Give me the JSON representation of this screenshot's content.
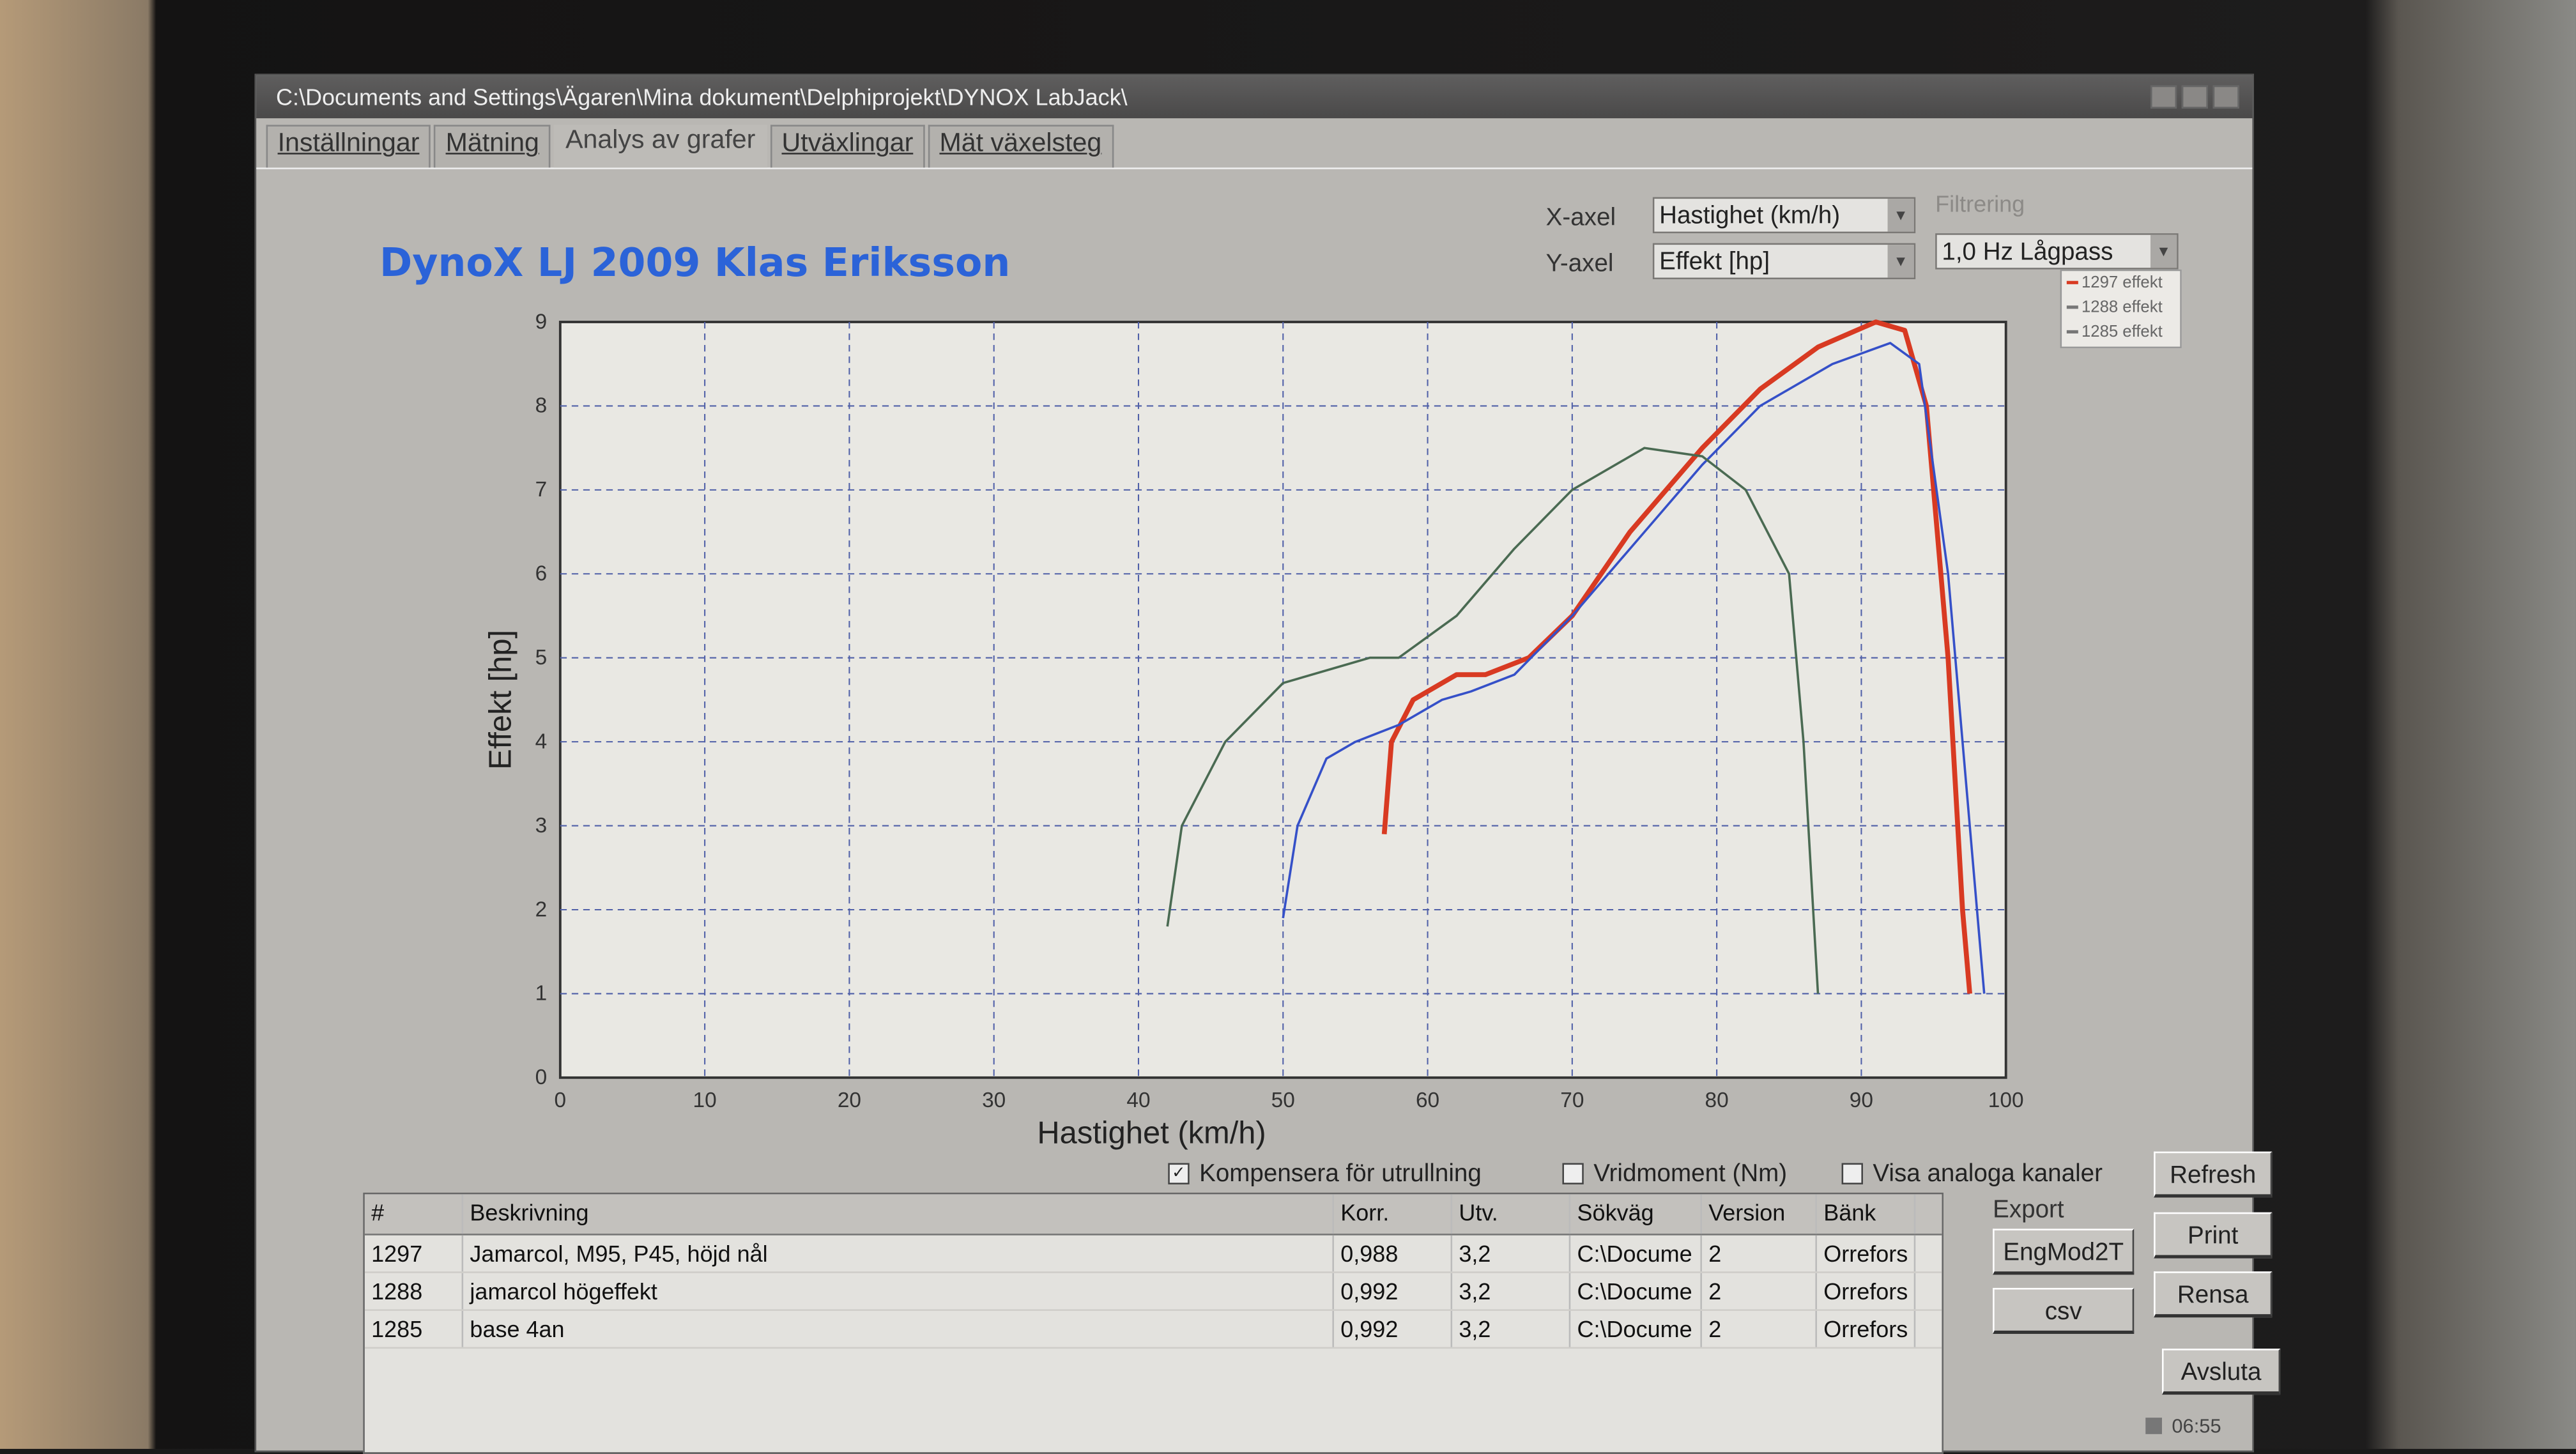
{
  "window": {
    "title": "C:\\Documents and Settings\\Ägaren\\Mina dokument\\Delphiprojekt\\DYNOX LabJack\\"
  },
  "tabs": [
    {
      "label": "Inställningar",
      "active": false
    },
    {
      "label": "Mätning",
      "active": false
    },
    {
      "label": "Analys av grafer",
      "active": true
    },
    {
      "label": "Utväxlingar",
      "active": false
    },
    {
      "label": "Mät växelsteg",
      "active": false
    }
  ],
  "app_title": "DynoX LJ 2009 Klas Eriksson",
  "controls": {
    "x_axis_label": "X-axel",
    "x_axis_value": "Hastighet (km/h)",
    "y_axis_label": "Y-axel",
    "y_axis_value": "Effekt [hp]",
    "filter_label": "Filtrering",
    "filter_value": "1,0 Hz Lågpass"
  },
  "options": {
    "compensate": {
      "label": "Kompensera för utrullning",
      "checked": true
    },
    "torque": {
      "label": "Vridmoment (Nm)",
      "checked": false
    },
    "analog": {
      "label": "Visa analoga kanaler",
      "checked": false
    }
  },
  "table": {
    "columns": [
      "#",
      "Beskrivning",
      "Korr.",
      "Utv.",
      "Sökväg",
      "Version",
      "Bänk"
    ],
    "rows": [
      [
        "1297",
        "Jamarcol, M95, P45, höjd nål",
        "0,988",
        "3,2",
        "C:\\Docume",
        "2",
        "Orrefors"
      ],
      [
        "1288",
        "jamarcol högeffekt",
        "0,992",
        "3,2",
        "C:\\Docume",
        "2",
        "Orrefors"
      ],
      [
        "1285",
        "base 4an",
        "0,992",
        "3,2",
        "C:\\Docume",
        "2",
        "Orrefors"
      ]
    ]
  },
  "buttons": {
    "export_label": "Export",
    "engmod": "EngMod2T",
    "csv": "csv",
    "refresh": "Refresh",
    "print": "Print",
    "rensa": "Rensa",
    "avsluta": "Avsluta"
  },
  "status": {
    "clock": "06:55"
  },
  "colors": {
    "title": "#2b63d8",
    "s1297": "#d83a22",
    "s1288": "#3550c8",
    "s1285": "#4a6a52"
  },
  "chart_data": {
    "type": "line",
    "xlabel": "Hastighet (km/h)",
    "ylabel": "Effekt [hp]",
    "xlim": [
      0,
      100
    ],
    "ylim": [
      0,
      9
    ],
    "xticks": [
      0,
      10,
      20,
      30,
      40,
      50,
      60,
      70,
      80,
      90,
      100
    ],
    "yticks": [
      0,
      1,
      2,
      3,
      4,
      5,
      6,
      7,
      8,
      9
    ],
    "grid": true,
    "legend": "top-right",
    "series": [
      {
        "name": "1297 effekt",
        "color": "#d83a22",
        "x": [
          57,
          57.5,
          59,
          62,
          64,
          67,
          70,
          74,
          79,
          83,
          87,
          91,
          93,
          94.5,
          96,
          97,
          97.5
        ],
        "y": [
          2.9,
          4.0,
          4.5,
          4.8,
          4.8,
          5.0,
          5.5,
          6.5,
          7.5,
          8.2,
          8.7,
          9.0,
          8.9,
          8.0,
          5.0,
          2.0,
          1.0
        ]
      },
      {
        "name": "1288 effekt",
        "color": "#3550c8",
        "x": [
          50,
          51,
          53,
          55,
          58,
          61,
          63,
          66,
          70,
          75,
          79,
          83,
          88,
          92,
          94,
          96,
          97.5,
          98.5
        ],
        "y": [
          1.9,
          3.0,
          3.8,
          4.0,
          4.2,
          4.5,
          4.6,
          4.8,
          5.5,
          6.5,
          7.3,
          8.0,
          8.5,
          8.75,
          8.5,
          6.0,
          3.0,
          1.0
        ]
      },
      {
        "name": "1285 effekt",
        "color": "#4a6a52",
        "x": [
          42,
          43,
          46,
          50,
          56,
          58,
          62,
          66,
          70,
          75,
          79,
          82,
          85,
          86,
          87
        ],
        "y": [
          1.8,
          3.0,
          4.0,
          4.7,
          5.0,
          5.0,
          5.5,
          6.3,
          7.0,
          7.5,
          7.4,
          7.0,
          6.0,
          4.0,
          1.0
        ]
      }
    ]
  }
}
